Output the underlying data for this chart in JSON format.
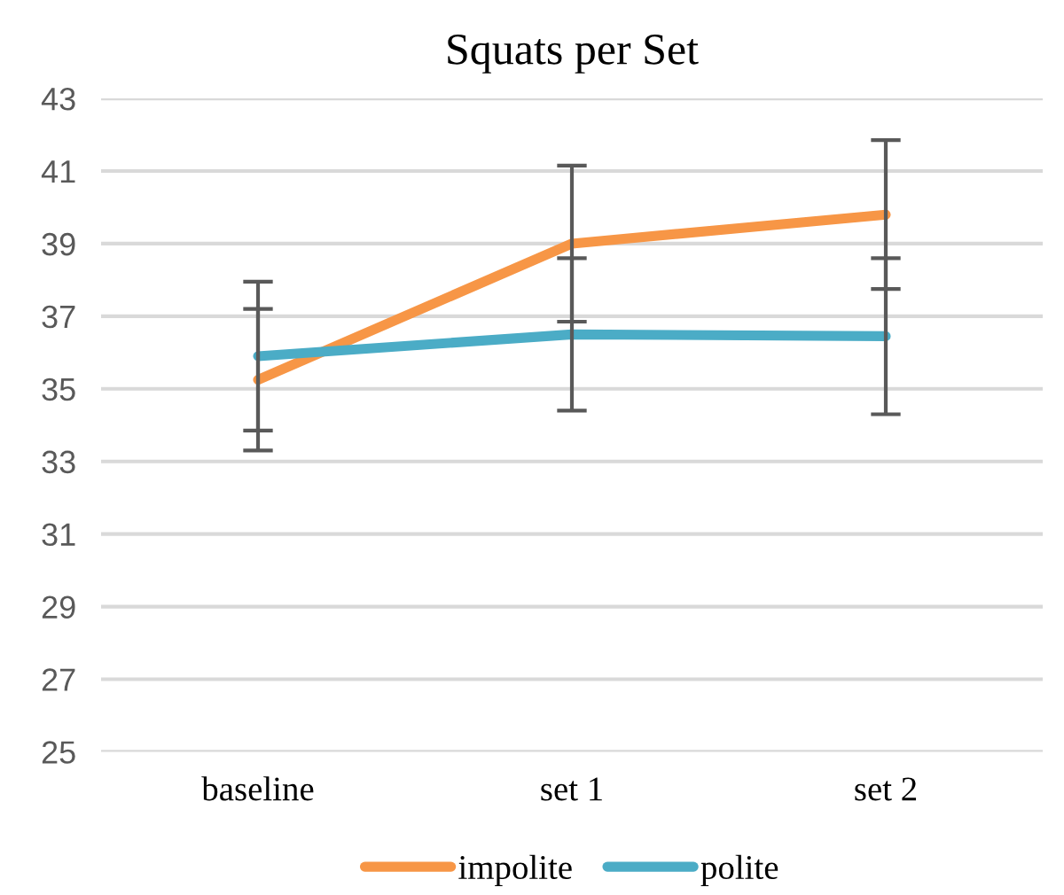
{
  "chart_data": {
    "type": "line",
    "title": "Squats per Set",
    "categories": [
      "baseline",
      "set 1",
      "set 2"
    ],
    "series": [
      {
        "name": "impolite",
        "color": "#f79646",
        "values": [
          35.25,
          39.0,
          39.8
        ],
        "errors": [
          1.95,
          2.15,
          2.05
        ]
      },
      {
        "name": "polite",
        "color": "#4bacc6",
        "values": [
          35.9,
          36.5,
          36.45
        ],
        "errors": [
          2.05,
          2.1,
          2.15
        ]
      }
    ],
    "ylim": [
      25,
      43
    ],
    "yticks": [
      25,
      27,
      29,
      31,
      33,
      35,
      37,
      39,
      41,
      43
    ],
    "grid": "y",
    "legend": "bottom",
    "marker": "none",
    "line_style": "solid"
  }
}
